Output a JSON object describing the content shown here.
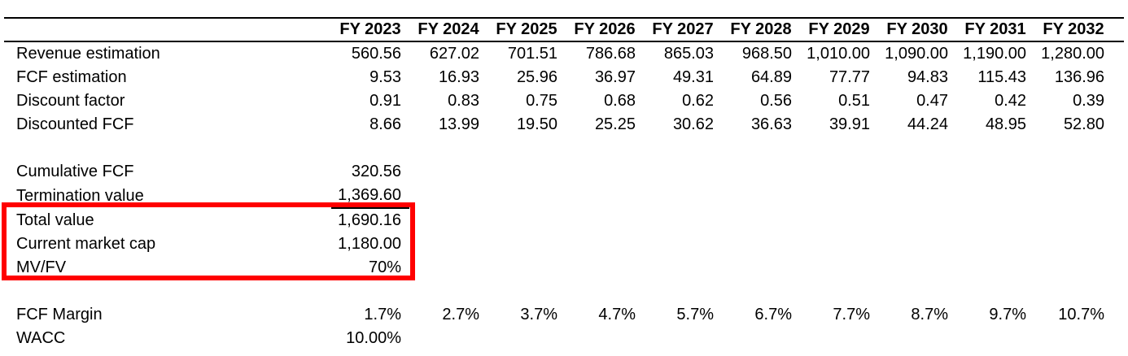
{
  "sheet": {
    "columns": [
      "FY 2023",
      "FY 2024",
      "FY 2025",
      "FY 2026",
      "FY 2027",
      "FY 2028",
      "FY 2029",
      "FY 2030",
      "FY 2031",
      "FY 2032"
    ],
    "rows": [
      {
        "label": "Revenue estimation",
        "values": [
          "560.56",
          "627.02",
          "701.51",
          "786.68",
          "865.03",
          "968.50",
          "1,010.00",
          "1,090.00",
          "1,190.00",
          "1,280.00"
        ]
      },
      {
        "label": "FCF estimation",
        "values": [
          "9.53",
          "16.93",
          "25.96",
          "36.97",
          "49.31",
          "64.89",
          "77.77",
          "94.83",
          "115.43",
          "136.96"
        ]
      },
      {
        "label": "Discount factor",
        "values": [
          "0.91",
          "0.83",
          "0.75",
          "0.68",
          "0.62",
          "0.56",
          "0.51",
          "0.47",
          "0.42",
          "0.39"
        ]
      },
      {
        "label": "Discounted FCF",
        "values": [
          "8.66",
          "13.99",
          "19.50",
          "25.25",
          "30.62",
          "36.63",
          "39.91",
          "44.24",
          "48.95",
          "52.80"
        ]
      },
      {
        "label": "Cumulative FCF",
        "values": [
          "320.56"
        ]
      },
      {
        "label": "Termination value",
        "values": [
          "1,369.60"
        ]
      },
      {
        "label": "Total value",
        "values": [
          "1,690.16"
        ]
      },
      {
        "label": "Current market cap",
        "values": [
          "1,180.00"
        ]
      },
      {
        "label": "MV/FV",
        "values": [
          "70%"
        ]
      },
      {
        "label": "FCF Margin",
        "values": [
          "1.7%",
          "2.7%",
          "3.7%",
          "4.7%",
          "5.7%",
          "6.7%",
          "7.7%",
          "8.7%",
          "9.7%",
          "10.7%"
        ]
      },
      {
        "label": "WACC",
        "values": [
          "10.00%"
        ]
      }
    ],
    "highlight": {
      "rows": [
        "Total value",
        "Current market cap",
        "MV/FV"
      ],
      "color": "#ff0000"
    }
  }
}
